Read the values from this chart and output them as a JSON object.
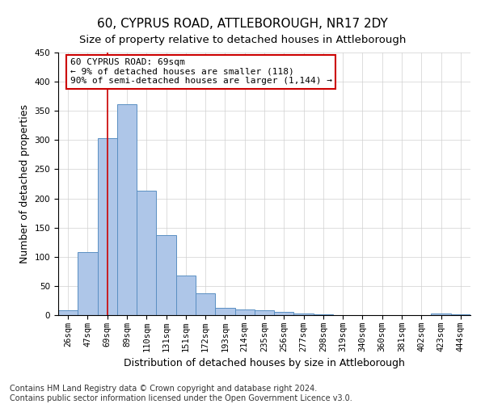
{
  "title": "60, CYPRUS ROAD, ATTLEBOROUGH, NR17 2DY",
  "subtitle": "Size of property relative to detached houses in Attleborough",
  "xlabel": "Distribution of detached houses by size in Attleborough",
  "ylabel": "Number of detached properties",
  "footer_line1": "Contains HM Land Registry data © Crown copyright and database right 2024.",
  "footer_line2": "Contains public sector information licensed under the Open Government Licence v3.0.",
  "bar_labels": [
    "26sqm",
    "47sqm",
    "69sqm",
    "89sqm",
    "110sqm",
    "131sqm",
    "151sqm",
    "172sqm",
    "193sqm",
    "214sqm",
    "235sqm",
    "256sqm",
    "277sqm",
    "298sqm",
    "319sqm",
    "340sqm",
    "360sqm",
    "381sqm",
    "402sqm",
    "423sqm",
    "444sqm"
  ],
  "bar_values": [
    8,
    108,
    303,
    362,
    213,
    137,
    68,
    38,
    13,
    10,
    9,
    6,
    3,
    2,
    0,
    0,
    0,
    0,
    0,
    3,
    2
  ],
  "bar_color": "#aec6e8",
  "bar_edge_color": "#5a8fc2",
  "vline_x": 2,
  "vline_color": "#cc0000",
  "annotation_text": "60 CYPRUS ROAD: 69sqm\n← 9% of detached houses are smaller (118)\n90% of semi-detached houses are larger (1,144) →",
  "annotation_box_color": "#ffffff",
  "annotation_box_edge": "#cc0000",
  "ylim": [
    0,
    450
  ],
  "yticks": [
    0,
    50,
    100,
    150,
    200,
    250,
    300,
    350,
    400,
    450
  ],
  "bg_color": "#ffffff",
  "grid_color": "#d0d0d0",
  "title_fontsize": 11,
  "subtitle_fontsize": 9.5,
  "axis_label_fontsize": 9,
  "tick_fontsize": 7.5,
  "footer_fontsize": 7,
  "annotation_fontsize": 8
}
